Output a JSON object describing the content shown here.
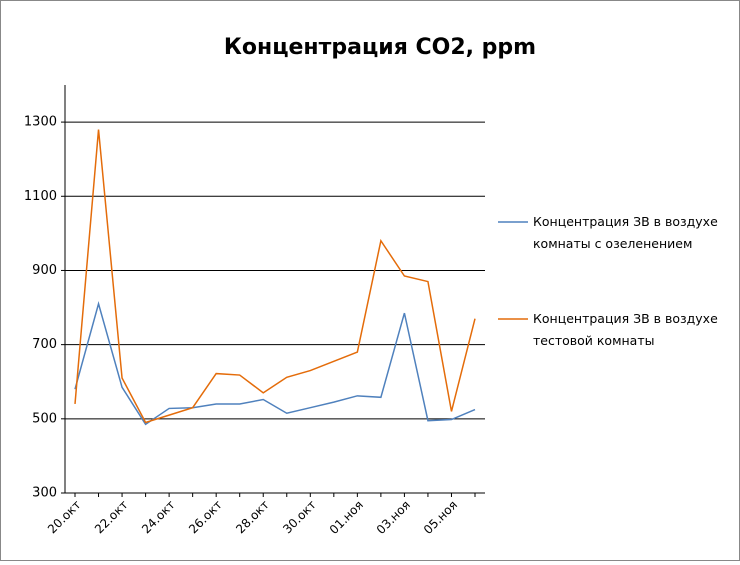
{
  "chart_data": {
    "type": "line",
    "title": "Концентрация CO2, ppm",
    "categories": [
      "20.окт",
      null,
      "22.окт",
      null,
      "24.окт",
      null,
      "26.окт",
      null,
      "28.окт",
      null,
      "30.окт",
      null,
      "01.ноя",
      null,
      "03.ноя",
      null,
      "05.ноя",
      null
    ],
    "series": [
      {
        "name": "Концентрация ЗВ в воздухе комнаты с озеленением",
        "color": "#4f81bd",
        "values": [
          580,
          810,
          585,
          485,
          528,
          530,
          540,
          540,
          552,
          515,
          530,
          545,
          562,
          558,
          785,
          495,
          498,
          525
        ]
      },
      {
        "name": "Концентрация ЗВ в воздухе тестовой комнаты",
        "color": "#e46c0a",
        "values": [
          540,
          1280,
          610,
          490,
          510,
          530,
          622,
          618,
          570,
          612,
          630,
          655,
          680,
          980,
          885,
          870,
          520,
          770
        ]
      }
    ],
    "ylim": [
      300,
      1400
    ],
    "yticks": [
      300,
      500,
      700,
      900,
      1100,
      1300
    ],
    "grid": true,
    "legend": "right"
  }
}
